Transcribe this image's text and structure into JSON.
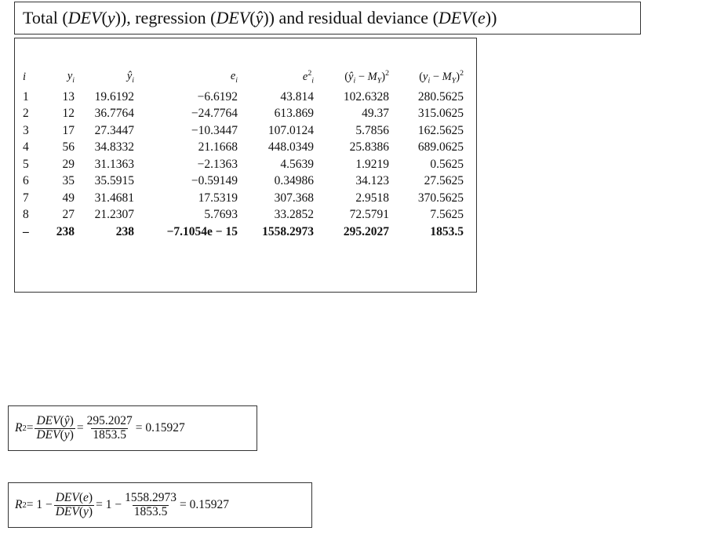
{
  "title": [
    {
      "t": "Total ("
    },
    {
      "it": "DEV"
    },
    {
      "t": "("
    },
    {
      "it": "y"
    },
    {
      "t": ")), regression ("
    },
    {
      "it": "DEV"
    },
    {
      "t": "("
    },
    {
      "it": "ŷ"
    },
    {
      "t": ")) and residual deviance ("
    },
    {
      "it": "DEV"
    },
    {
      "t": "("
    },
    {
      "it": "e"
    },
    {
      "t": "))"
    }
  ],
  "table": {
    "header": [
      [
        {
          "it": "i"
        }
      ],
      [
        {
          "it": "y"
        },
        {
          "sub": "i"
        }
      ],
      [
        {
          "it": "ŷ"
        },
        {
          "sub": "i"
        }
      ],
      [
        {
          "it": "e"
        },
        {
          "sub": "i"
        }
      ],
      [
        {
          "it": "e"
        },
        {
          "sup": "2"
        },
        {
          "sub": "i"
        }
      ],
      [
        {
          "t": "("
        },
        {
          "it": "ŷ"
        },
        {
          "sub": "i"
        },
        {
          "t": " − "
        },
        {
          "it": "M"
        },
        {
          "sub": "Y"
        },
        {
          "t": ")"
        },
        {
          "sup": "2"
        }
      ],
      [
        {
          "t": "("
        },
        {
          "it": "y"
        },
        {
          "sub": "i"
        },
        {
          "t": " − "
        },
        {
          "it": "M"
        },
        {
          "sub": "Y"
        },
        {
          "t": ")"
        },
        {
          "sup": "2"
        }
      ]
    ],
    "rows": [
      [
        "1",
        "13",
        "19.6192",
        "−6.6192",
        "43.814",
        "102.6328",
        "280.5625"
      ],
      [
        "2",
        "12",
        "36.7764",
        "−24.7764",
        "613.869",
        "49.37",
        "315.0625"
      ],
      [
        "3",
        "17",
        "27.3447",
        "−10.3447",
        "107.0124",
        "5.7856",
        "162.5625"
      ],
      [
        "4",
        "56",
        "34.8332",
        "21.1668",
        "448.0349",
        "25.8386",
        "689.0625"
      ],
      [
        "5",
        "29",
        "31.1363",
        "−2.1363",
        "4.5639",
        "1.9219",
        "0.5625"
      ],
      [
        "6",
        "35",
        "35.5915",
        "−0.59149",
        "0.34986",
        "34.123",
        "27.5625"
      ],
      [
        "7",
        "49",
        "31.4681",
        "17.5319",
        "307.368",
        "2.9518",
        "370.5625"
      ],
      [
        "8",
        "27",
        "21.2307",
        "5.7693",
        "33.2852",
        "72.5791",
        "7.5625"
      ]
    ],
    "total_row": [
      "–",
      "238",
      "238",
      "−7.1054e − 15",
      "1558.2973",
      "295.2027",
      "1853.5"
    ]
  },
  "formulas": [
    [
      {
        "it": "R"
      },
      {
        "sup": "2"
      },
      {
        "t": " = "
      },
      {
        "num": [
          {
            "it": "DEV"
          },
          {
            "t": "("
          },
          {
            "it": "ŷ"
          },
          {
            "t": ")"
          }
        ],
        "den": [
          {
            "it": "DEV"
          },
          {
            "t": "("
          },
          {
            "it": "y"
          },
          {
            "t": ")"
          }
        ]
      },
      {
        "t": " = "
      },
      {
        "num": [
          {
            "t": "295.2027"
          }
        ],
        "den": [
          {
            "t": "1853.5"
          }
        ]
      },
      {
        "t": " = 0.15927"
      }
    ],
    [
      {
        "it": "R"
      },
      {
        "sup": "2"
      },
      {
        "t": " = 1 − "
      },
      {
        "num": [
          {
            "it": "DEV"
          },
          {
            "t": "("
          },
          {
            "it": "e"
          },
          {
            "t": ")"
          }
        ],
        "den": [
          {
            "it": "DEV"
          },
          {
            "t": "("
          },
          {
            "it": "y"
          },
          {
            "t": ")"
          }
        ]
      },
      {
        "t": " = 1 − "
      },
      {
        "num": [
          {
            "t": "1558.2973"
          }
        ],
        "den": [
          {
            "t": "1853.5"
          }
        ]
      },
      {
        "t": " = 0.15927"
      }
    ]
  ]
}
